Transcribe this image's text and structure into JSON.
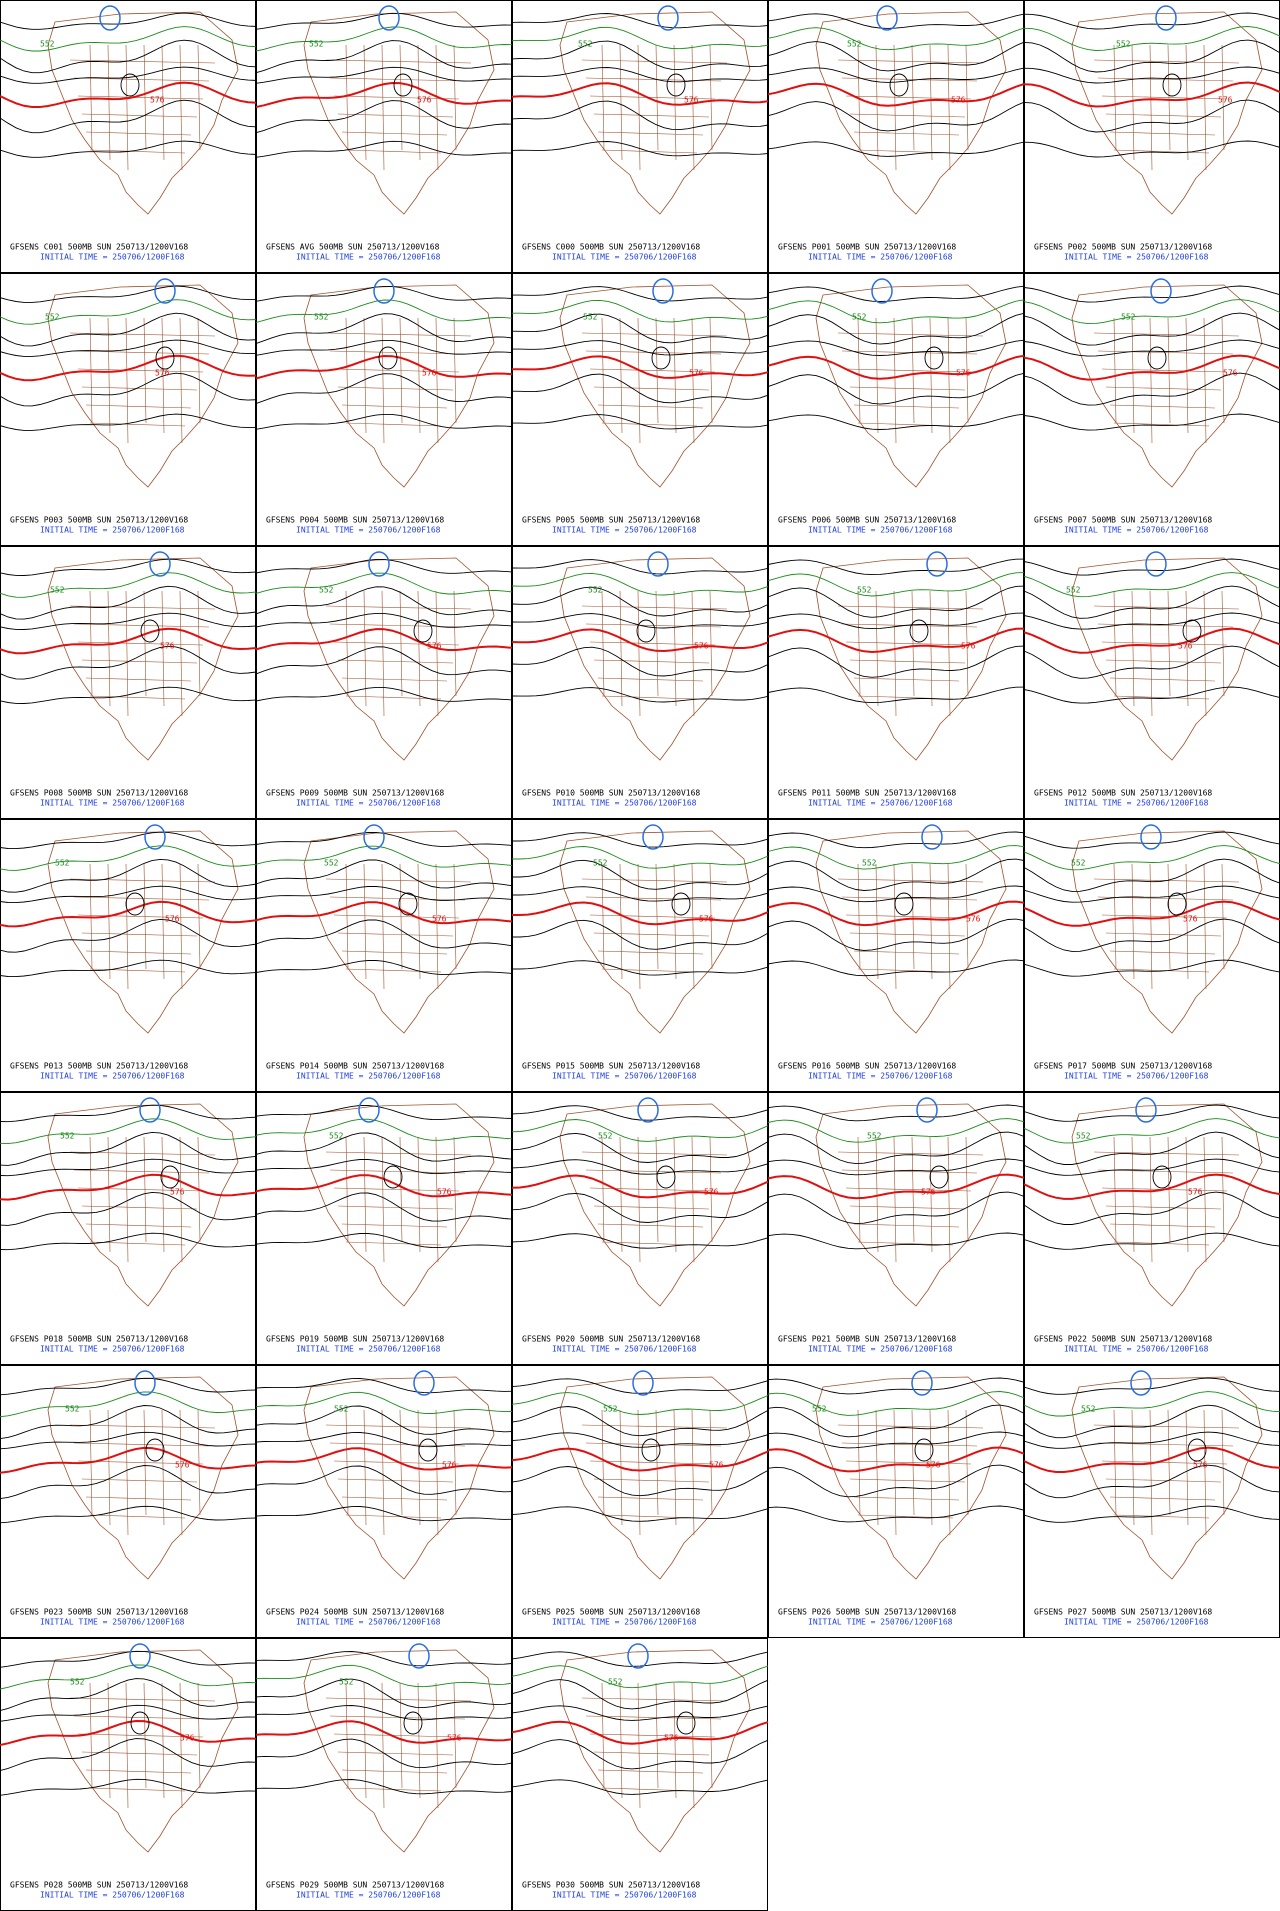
{
  "panels": [
    {
      "title": "GFSENS C001 500MB SUN 250713/1200V168",
      "subtitle": "INITIAL TIME = 250706/1200F168",
      "contour_labels": [
        "552",
        "576"
      ]
    },
    {
      "title": "GFSENS AVG 500MB SUN 250713/1200V168",
      "subtitle": "INITIAL TIME = 250706/1200F168",
      "contour_labels": [
        "552",
        "576"
      ]
    },
    {
      "title": "GFSENS C000 500MB SUN 250713/1200V168",
      "subtitle": "INITIAL TIME = 250706/1200F168",
      "contour_labels": [
        "552",
        "576"
      ]
    },
    {
      "title": "GFSENS P001 500MB SUN 250713/1200V168",
      "subtitle": "INITIAL TIME = 250706/1200F168",
      "contour_labels": [
        "552",
        "576"
      ]
    },
    {
      "title": "GFSENS P002 500MB SUN 250713/1200V168",
      "subtitle": "INITIAL TIME = 250706/1200F168",
      "contour_labels": [
        "552",
        "576"
      ]
    },
    {
      "title": "GFSENS P003 500MB SUN 250713/1200V168",
      "subtitle": "INITIAL TIME = 250706/1200F168",
      "contour_labels": [
        "552",
        "576"
      ]
    },
    {
      "title": "GFSENS P004 500MB SUN 250713/1200V168",
      "subtitle": "INITIAL TIME = 250706/1200F168",
      "contour_labels": [
        "552",
        "576"
      ]
    },
    {
      "title": "GFSENS P005 500MB SUN 250713/1200V168",
      "subtitle": "INITIAL TIME = 250706/1200F168",
      "contour_labels": [
        "552",
        "576"
      ]
    },
    {
      "title": "GFSENS P006 500MB SUN 250713/1200V168",
      "subtitle": "INITIAL TIME = 250706/1200F168",
      "contour_labels": [
        "552",
        "576"
      ]
    },
    {
      "title": "GFSENS P007 500MB SUN 250713/1200V168",
      "subtitle": "INITIAL TIME = 250706/1200F168",
      "contour_labels": [
        "552",
        "576"
      ]
    },
    {
      "title": "GFSENS P008 500MB SUN 250713/1200V168",
      "subtitle": "INITIAL TIME = 250706/1200F168",
      "contour_labels": [
        "552",
        "576"
      ]
    },
    {
      "title": "GFSENS P009 500MB SUN 250713/1200V168",
      "subtitle": "INITIAL TIME = 250706/1200F168",
      "contour_labels": [
        "552",
        "576"
      ]
    },
    {
      "title": "GFSENS P010 500MB SUN 250713/1200V168",
      "subtitle": "INITIAL TIME = 250706/1200F168",
      "contour_labels": [
        "552",
        "576"
      ]
    },
    {
      "title": "GFSENS P011 500MB SUN 250713/1200V168",
      "subtitle": "INITIAL TIME = 250706/1200F168",
      "contour_labels": [
        "552",
        "576"
      ]
    },
    {
      "title": "GFSENS P012 500MB SUN 250713/1200V168",
      "subtitle": "INITIAL TIME = 250706/1200F168",
      "contour_labels": [
        "552",
        "576"
      ]
    },
    {
      "title": "GFSENS P013 500MB SUN 250713/1200V168",
      "subtitle": "INITIAL TIME = 250706/1200F168",
      "contour_labels": [
        "552",
        "576"
      ]
    },
    {
      "title": "GFSENS P014 500MB SUN 250713/1200V168",
      "subtitle": "INITIAL TIME = 250706/1200F168",
      "contour_labels": [
        "552",
        "576"
      ]
    },
    {
      "title": "GFSENS P015 500MB SUN 250713/1200V168",
      "subtitle": "INITIAL TIME = 250706/1200F168",
      "contour_labels": [
        "552",
        "576"
      ]
    },
    {
      "title": "GFSENS P016 500MB SUN 250713/1200V168",
      "subtitle": "INITIAL TIME = 250706/1200F168",
      "contour_labels": [
        "552",
        "576"
      ]
    },
    {
      "title": "GFSENS P017 500MB SUN 250713/1200V168",
      "subtitle": "INITIAL TIME = 250706/1200F168",
      "contour_labels": [
        "552",
        "576"
      ]
    },
    {
      "title": "GFSENS P018 500MB SUN 250713/1200V168",
      "subtitle": "INITIAL TIME = 250706/1200F168",
      "contour_labels": [
        "552",
        "576"
      ]
    },
    {
      "title": "GFSENS P019 500MB SUN 250713/1200V168",
      "subtitle": "INITIAL TIME = 250706/1200F168",
      "contour_labels": [
        "552",
        "576"
      ]
    },
    {
      "title": "GFSENS P020 500MB SUN 250713/1200V168",
      "subtitle": "INITIAL TIME = 250706/1200F168",
      "contour_labels": [
        "552",
        "576"
      ]
    },
    {
      "title": "GFSENS P021 500MB SUN 250713/1200V168",
      "subtitle": "INITIAL TIME = 250706/1200F168",
      "contour_labels": [
        "552",
        "576"
      ]
    },
    {
      "title": "GFSENS P022 500MB SUN 250713/1200V168",
      "subtitle": "INITIAL TIME = 250706/1200F168",
      "contour_labels": [
        "552",
        "576"
      ]
    },
    {
      "title": "GFSENS P023 500MB SUN 250713/1200V168",
      "subtitle": "INITIAL TIME = 250706/1200F168",
      "contour_labels": [
        "552",
        "576"
      ]
    },
    {
      "title": "GFSENS P024 500MB SUN 250713/1200V168",
      "subtitle": "INITIAL TIME = 250706/1200F168",
      "contour_labels": [
        "552",
        "576"
      ]
    },
    {
      "title": "GFSENS P025 500MB SUN 250713/1200V168",
      "subtitle": "INITIAL TIME = 250706/1200F168",
      "contour_labels": [
        "552",
        "576"
      ]
    },
    {
      "title": "GFSENS P026 500MB SUN 250713/1200V168",
      "subtitle": "INITIAL TIME = 250706/1200F168",
      "contour_labels": [
        "552",
        "576"
      ]
    },
    {
      "title": "GFSENS P027 500MB SUN 250713/1200V168",
      "subtitle": "INITIAL TIME = 250706/1200F168",
      "contour_labels": [
        "552",
        "576"
      ]
    },
    {
      "title": "GFSENS P028 500MB SUN 250713/1200V168",
      "subtitle": "INITIAL TIME = 250706/1200F168",
      "contour_labels": [
        "552",
        "576"
      ]
    },
    {
      "title": "GFSENS P029 500MB SUN 250713/1200V168",
      "subtitle": "INITIAL TIME = 250706/1200F168",
      "contour_labels": [
        "552",
        "576"
      ]
    },
    {
      "title": "GFSENS P030 500MB SUN 250713/1200V168",
      "subtitle": "INITIAL TIME = 250706/1200F168",
      "contour_labels": [
        "552",
        "576"
      ]
    }
  ]
}
